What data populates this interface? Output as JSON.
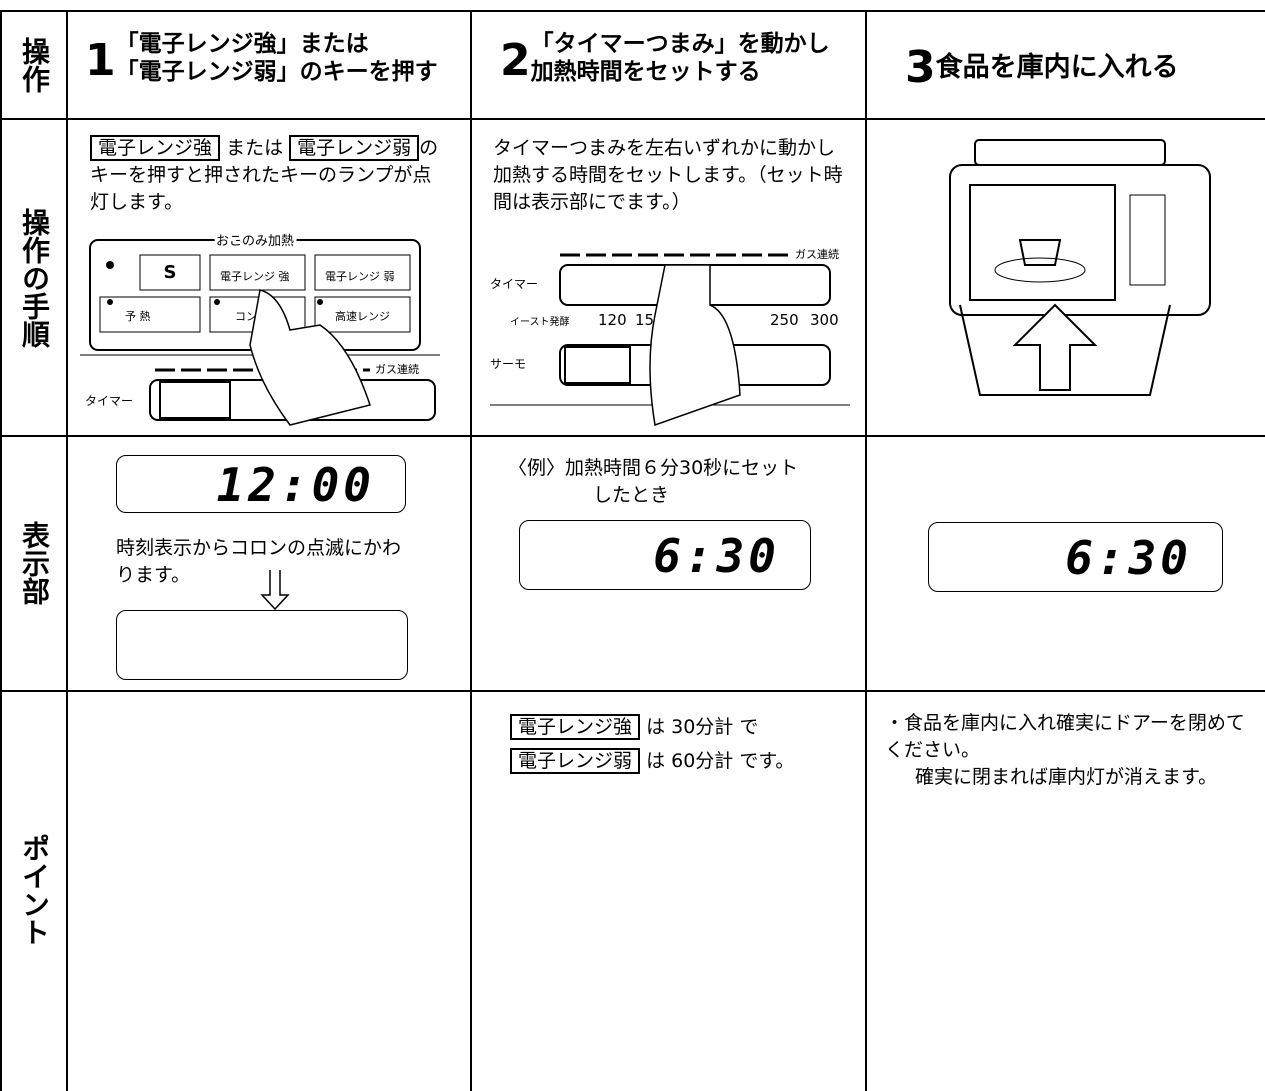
{
  "row_headers": {
    "operation": "操作",
    "procedure": "操作の手順",
    "display": "表示部",
    "point": "ポイント"
  },
  "steps": [
    {
      "number": "1",
      "title_lines": [
        "「電子レンジ強」または",
        "「電子レンジ弱」のキーを押す"
      ],
      "procedure": {
        "key1": "電子レンジ強",
        "middle": "または",
        "key2": "電子レンジ弱",
        "rest": "のキーを押すと押されたキーのランプが点灯します。"
      },
      "panel": {
        "group": "おこのみ加熱",
        "s_key": "S",
        "key_strong": "電子レンジ 強",
        "key_weak": "電子レンジ 弱",
        "preheat": "予 熱",
        "combi": "コンビ",
        "fast": "高速レンジ",
        "gas": "ガス連続",
        "timer": "タイマー"
      },
      "display": {
        "value": "12:00",
        "note": "時刻表示からコロンの点滅にかわります。"
      }
    },
    {
      "number": "2",
      "title_lines": [
        "「タイマーつまみ」を動かし",
        "加熱時間をセットする"
      ],
      "procedure": {
        "text": "タイマーつまみを左右いずれかに動かし加熱する時間をセットします。（セット時間は表示部にでます。）"
      },
      "panel": {
        "gas": "ガス連続",
        "timer": "タイマー",
        "yeast": "イースト発酵",
        "t1": "120",
        "t2": "150",
        "t3": "250",
        "t4": "300",
        "thermo": "サーモ"
      },
      "display": {
        "note_lines": [
          "〈例〉加熱時間６分30秒にセット",
          "したとき"
        ],
        "value": "6:30"
      },
      "point": [
        {
          "key": "電子レンジ強",
          "text": "は 30分計 で"
        },
        {
          "key": "電子レンジ弱",
          "text": "は 60分計 です。"
        }
      ]
    },
    {
      "number": "3",
      "title_lines": [
        "食品を庫内に入れる"
      ],
      "display": {
        "value": "6:30"
      },
      "point": [
        "・食品を庫内に入れ確実にドアーを閉めてください。",
        "確実に閉まれば庫内灯が消えます。"
      ]
    }
  ]
}
